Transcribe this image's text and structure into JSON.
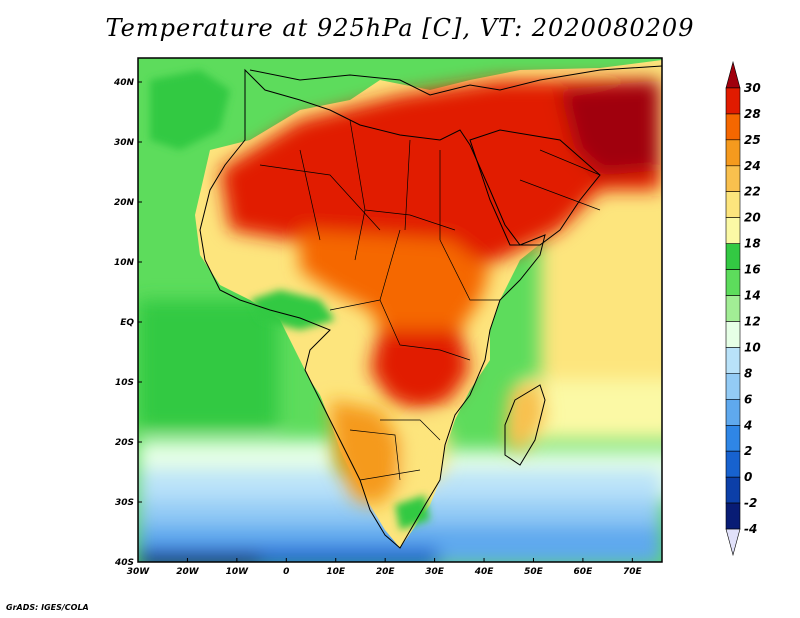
{
  "title": "Temperature at 925hPa [C], VT: 2020080209",
  "credit": "GrADS: IGES/COLA",
  "map": {
    "lon_range": [
      -30,
      76
    ],
    "lat_range": [
      -40,
      44
    ],
    "lon_ticks": [
      {
        "value": -30,
        "label": "30W"
      },
      {
        "value": -20,
        "label": "20W"
      },
      {
        "value": -10,
        "label": "10W"
      },
      {
        "value": 0,
        "label": "0"
      },
      {
        "value": 10,
        "label": "10E"
      },
      {
        "value": 20,
        "label": "20E"
      },
      {
        "value": 30,
        "label": "30E"
      },
      {
        "value": 40,
        "label": "40E"
      },
      {
        "value": 50,
        "label": "50E"
      },
      {
        "value": 60,
        "label": "60E"
      },
      {
        "value": 70,
        "label": "70E"
      }
    ],
    "lat_ticks": [
      {
        "value": 40,
        "label": "40N"
      },
      {
        "value": 30,
        "label": "30N"
      },
      {
        "value": 20,
        "label": "20N"
      },
      {
        "value": 10,
        "label": "10N"
      },
      {
        "value": 0,
        "label": "EQ"
      },
      {
        "value": -10,
        "label": "10S"
      },
      {
        "value": -20,
        "label": "20S"
      },
      {
        "value": -30,
        "label": "30S"
      },
      {
        "value": -40,
        "label": "40S"
      }
    ]
  },
  "colorbar": {
    "levels": [
      "30",
      "28",
      "25",
      "24",
      "22",
      "20",
      "18",
      "16",
      "14",
      "12",
      "10",
      "8",
      "6",
      "4",
      "2",
      "0",
      "-2",
      "-4"
    ],
    "colors": [
      "#a0000d",
      "#e11b00",
      "#f56700",
      "#f59a1e",
      "#f9c04e",
      "#fde57d",
      "#fbf9a5",
      "#33c943",
      "#5ddc5c",
      "#a2ed95",
      "#e6ffe6",
      "#b9e2f9",
      "#93cbf5",
      "#5fa9ee",
      "#2f86e6",
      "#1762cf",
      "#0c3fa8",
      "#081c75",
      "#e1e1fa"
    ]
  }
}
